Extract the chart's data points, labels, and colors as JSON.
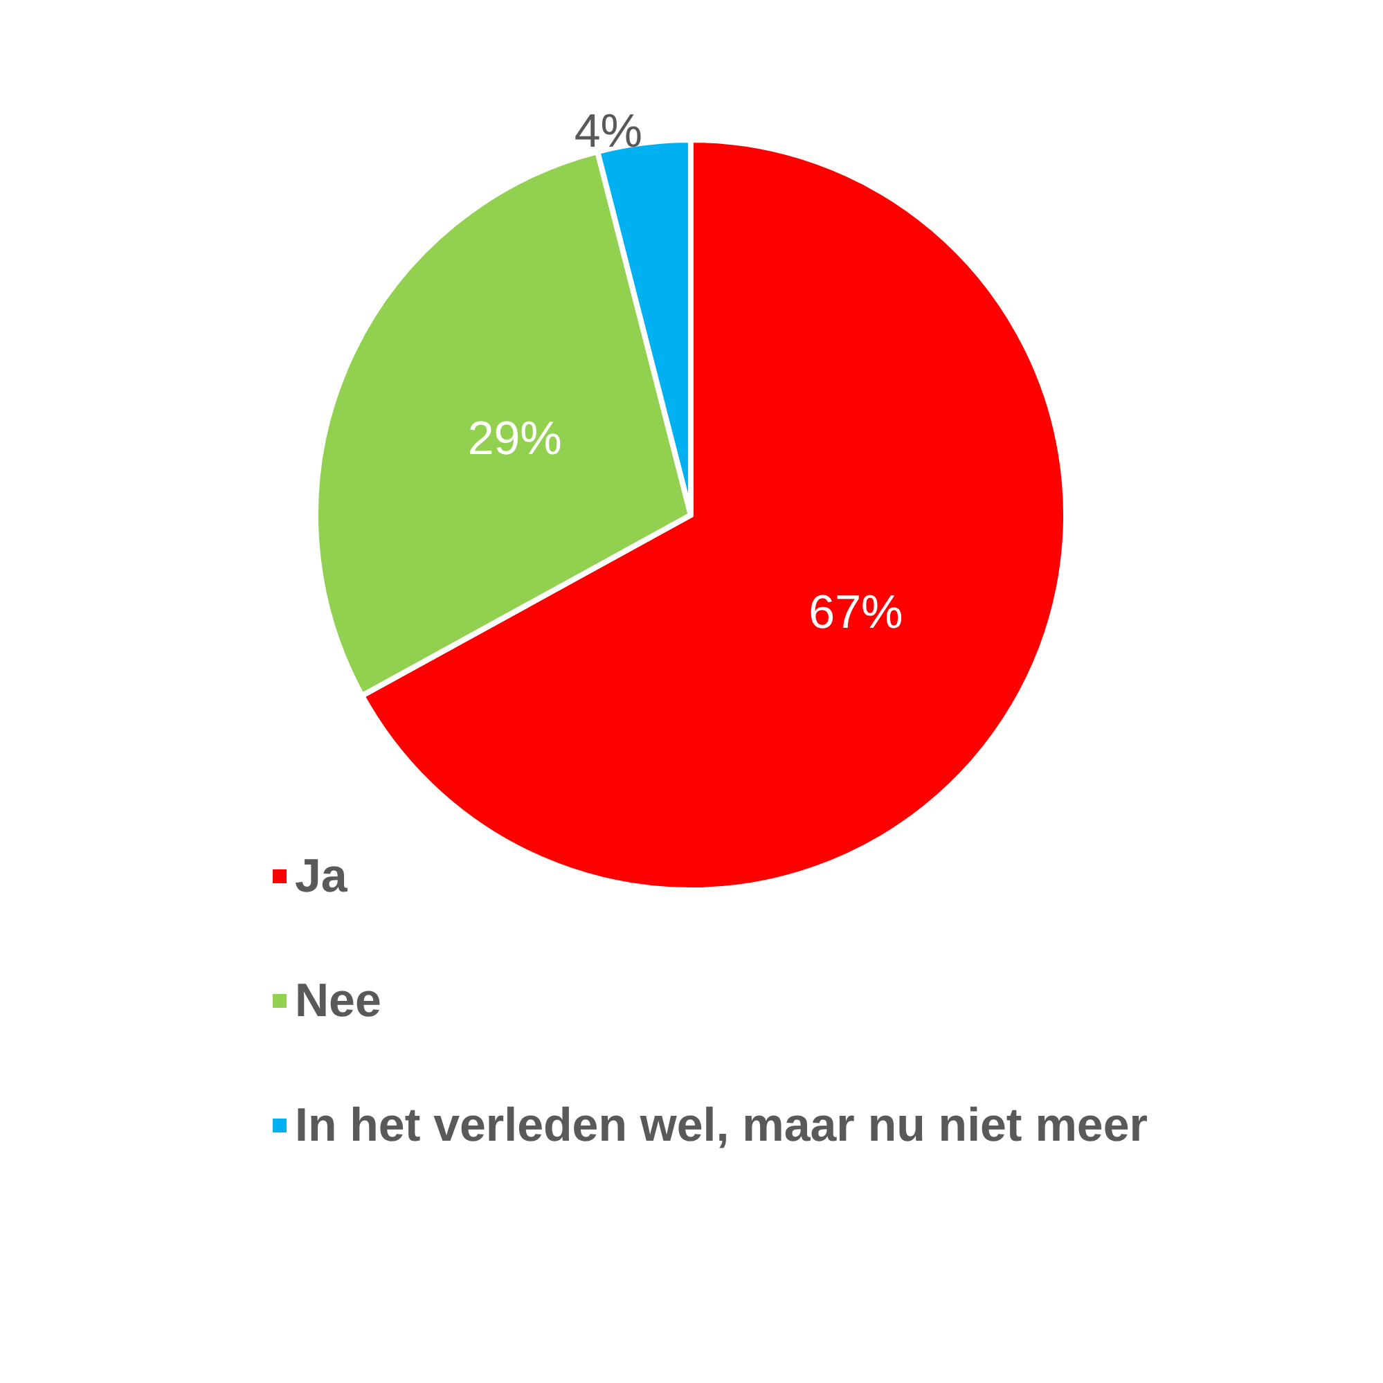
{
  "chart_data": {
    "type": "pie",
    "categories": [
      "Ja",
      "Nee",
      "In het verleden wel, maar nu niet meer"
    ],
    "values": [
      67,
      29,
      4
    ],
    "colors": [
      "#ff0000",
      "#92d050",
      "#00b0f0"
    ],
    "value_labels": [
      "67%",
      "29%",
      "4%"
    ],
    "legend": "bottom left"
  }
}
